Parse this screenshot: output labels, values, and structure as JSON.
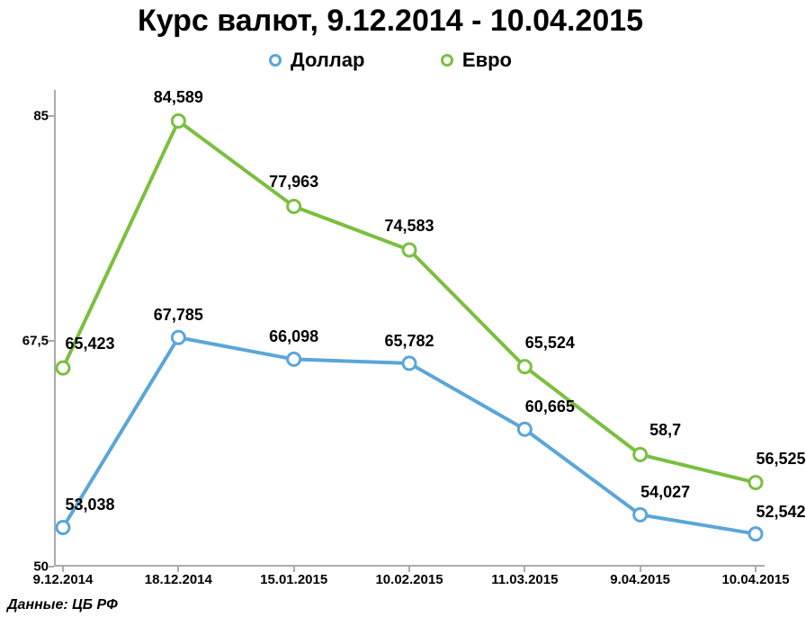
{
  "title": "Курс валют, 9.12.2014 - 10.04.2015",
  "source": "Данные: ЦБ РФ",
  "legend": {
    "dollar": {
      "label": "Доллар",
      "color": "#5aa6d8"
    },
    "euro": {
      "label": "Евро",
      "color": "#7bbf3f"
    }
  },
  "chart": {
    "type": "line",
    "background_color": "#ffffff",
    "axis_color": "#aaaaaa",
    "line_width": 4,
    "marker_radius": 7,
    "marker_fill": "#ffffff",
    "marker_stroke_width": 3,
    "title_fontsize": 34,
    "label_fontsize": 18,
    "axis_tick_fontsize": 15,
    "legend_fontsize": 22,
    "x_categories": [
      "9.12.2014",
      "18.12.2014",
      "15.01.2015",
      "10.02.2015",
      "11.03.2015",
      "9.04.2015",
      "10.04.2015"
    ],
    "y_ticks": [
      50,
      67.5,
      85
    ],
    "y_tick_labels": [
      "50",
      "67,5",
      "85"
    ],
    "ylim": [
      50,
      87
    ],
    "series": [
      {
        "name": "Евро",
        "color": "#7bbf3f",
        "values": [
          65.423,
          84.589,
          77.963,
          74.583,
          65.524,
          58.7,
          56.525
        ],
        "labels": [
          "65,423",
          "84,589",
          "77,963",
          "74,583",
          "65,524",
          "58,7",
          "56,525"
        ],
        "label_dy": [
          -16,
          -16,
          -16,
          -16,
          -16,
          -16,
          -16
        ],
        "label_dx": [
          30,
          0,
          0,
          0,
          28,
          28,
          28
        ]
      },
      {
        "name": "Доллар",
        "color": "#5aa6d8",
        "values": [
          53.038,
          67.785,
          66.098,
          65.782,
          60.665,
          54.027,
          52.542
        ],
        "labels": [
          "53,038",
          "67,785",
          "66,098",
          "65,782",
          "60,665",
          "54,027",
          "52,542"
        ],
        "label_dy": [
          -14,
          -14,
          -14,
          -14,
          -14,
          -14,
          -14
        ],
        "label_dx": [
          30,
          0,
          0,
          0,
          28,
          28,
          28
        ]
      }
    ]
  }
}
